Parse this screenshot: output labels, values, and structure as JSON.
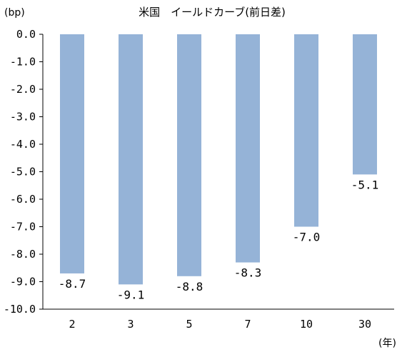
{
  "chart_data": {
    "type": "bar",
    "title": "米国　イールドカーブ(前日差)",
    "y_unit": "(bp)",
    "x_unit": "(年)",
    "categories": [
      "2",
      "3",
      "5",
      "7",
      "10",
      "30"
    ],
    "values": [
      -8.7,
      -9.1,
      -8.8,
      -8.3,
      -7.0,
      -5.1
    ],
    "data_labels": [
      "-8.7",
      "-9.1",
      "-8.8",
      "-8.3",
      "-7.0",
      "-5.1"
    ],
    "ylim": [
      -10.0,
      0.0
    ],
    "y_ticks": [
      "0.0",
      "-1.0",
      "-2.0",
      "-3.0",
      "-4.0",
      "-5.0",
      "-6.0",
      "-7.0",
      "-8.0",
      "-9.0",
      "-10.0"
    ],
    "grid": false,
    "legend": "none",
    "bar_color": "#95b3d7"
  }
}
